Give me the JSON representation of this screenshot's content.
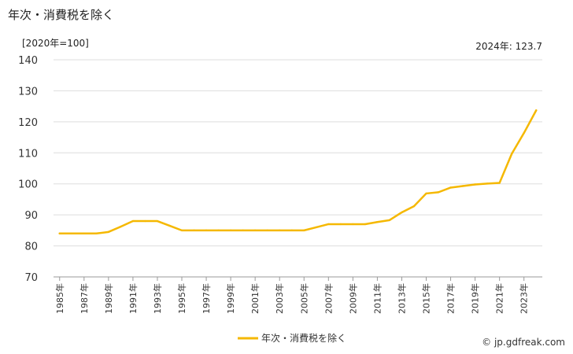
{
  "title": "年次・消費税を除く",
  "unit_label": "[2020年=100]",
  "latest_label": "2024年: 123.7",
  "credit": "© jp.gdfreak.com",
  "colors": {
    "line": "#f5b800",
    "grid": "#dddddd",
    "axis": "#999999"
  },
  "chart_data": {
    "type": "line",
    "title": "年次・消費税を除く",
    "ylabel": "[2020年=100]",
    "ylim": [
      70,
      140
    ],
    "yticks": [
      70,
      80,
      90,
      100,
      110,
      120,
      130,
      140
    ],
    "grid": true,
    "legend_position": "bottom-center",
    "x": [
      "1985年",
      "1986年",
      "1987年",
      "1988年",
      "1989年",
      "1990年",
      "1991年",
      "1992年",
      "1993年",
      "1994年",
      "1995年",
      "1996年",
      "1997年",
      "1998年",
      "1999年",
      "2000年",
      "2001年",
      "2002年",
      "2003年",
      "2004年",
      "2005年",
      "2006年",
      "2007年",
      "2008年",
      "2009年",
      "2010年",
      "2011年",
      "2012年",
      "2013年",
      "2014年",
      "2015年",
      "2016年",
      "2017年",
      "2018年",
      "2019年",
      "2020年",
      "2021年",
      "2022年",
      "2023年",
      "2024年"
    ],
    "xtick_labels": [
      "1985年",
      "1987年",
      "1989年",
      "1991年",
      "1993年",
      "1995年",
      "1997年",
      "1999年",
      "2001年",
      "2003年",
      "2005年",
      "2007年",
      "2009年",
      "2011年",
      "2013年",
      "2015年",
      "2017年",
      "2019年",
      "2021年",
      "2023年"
    ],
    "series": [
      {
        "name": "年次・消費税を除く",
        "values": [
          84,
          84,
          84,
          84,
          84.5,
          86.2,
          88,
          88,
          88,
          86.5,
          85,
          85,
          85,
          85,
          85,
          85,
          85,
          85,
          85,
          85,
          85,
          86,
          87,
          87,
          87,
          87,
          87.7,
          88.3,
          90.8,
          92.8,
          96.9,
          97.3,
          98.8,
          99.3,
          99.8,
          100.1,
          100.3,
          109.7,
          116.4,
          123.7
        ]
      }
    ]
  }
}
